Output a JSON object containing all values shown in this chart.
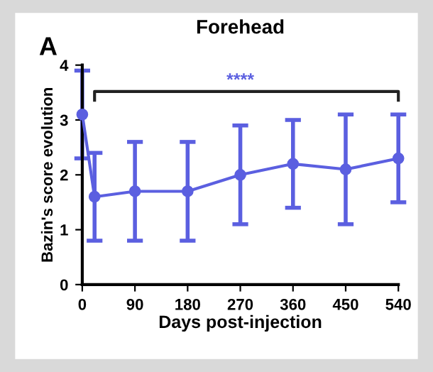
{
  "chart_data": {
    "type": "line",
    "title": "Forehead",
    "xlabel": "Days post-injection",
    "ylabel": "Bazin's score evolution",
    "annotations": [
      "A",
      "****"
    ],
    "x": [
      0,
      21,
      90,
      180,
      270,
      360,
      450,
      540
    ],
    "series": [
      {
        "color": "#5b5fe0",
        "values": [
          3.1,
          1.6,
          1.7,
          1.7,
          2.0,
          2.2,
          2.1,
          2.3
        ],
        "errors": [
          [
            2.3,
            3.9
          ],
          [
            0.8,
            2.4
          ],
          [
            0.8,
            2.6
          ],
          [
            0.8,
            2.6
          ],
          [
            1.1,
            2.9
          ],
          [
            1.4,
            3.0
          ],
          [
            1.1,
            3.1
          ],
          [
            1.5,
            3.1
          ]
        ]
      }
    ],
    "xlim": [
      0,
      540
    ],
    "xticks": [
      0,
      90,
      180,
      270,
      360,
      450,
      540
    ],
    "ylim": [
      0,
      4
    ],
    "yticks": [
      0,
      1,
      2,
      3,
      4
    ],
    "marker": "circle",
    "line_style": "solid",
    "grid": false,
    "legend": false
  }
}
